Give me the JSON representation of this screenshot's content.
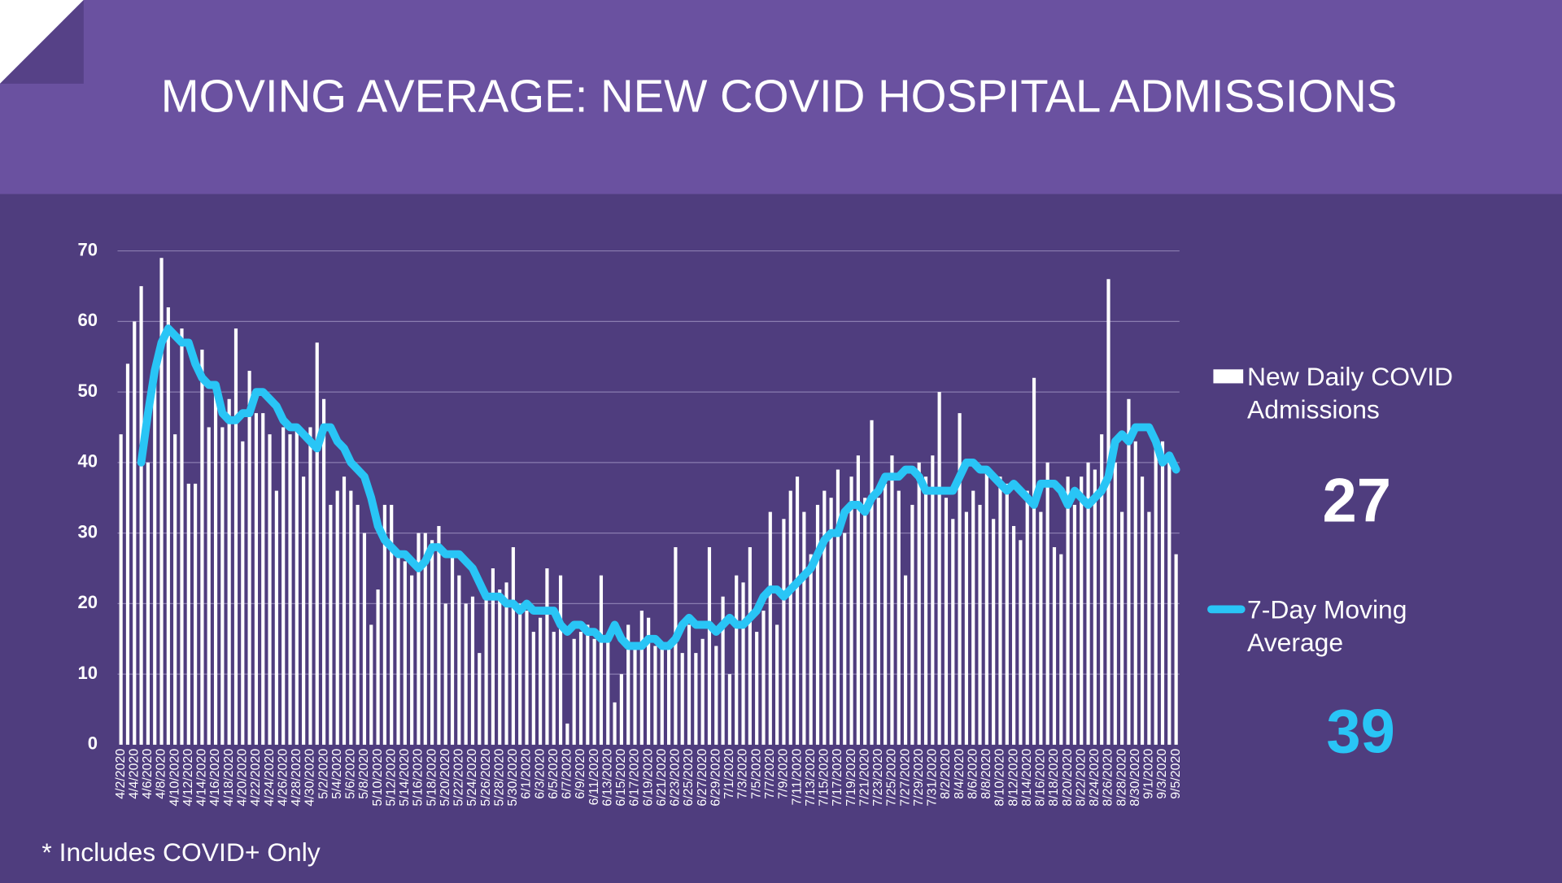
{
  "chart_data": {
    "type": "bar-line",
    "title": "MOVING AVERAGE: NEW COVID HOSPITAL ADMISSIONS",
    "note": "* Includes COVID+ Only",
    "categories": [
      "4/2/2020",
      null,
      "4/4/2020",
      null,
      "4/6/2020",
      null,
      "4/8/2020",
      null,
      "4/10/2020",
      null,
      "4/12/2020",
      null,
      "4/14/2020",
      null,
      "4/16/2020",
      null,
      "4/18/2020",
      null,
      "4/20/2020",
      null,
      "4/22/2020",
      null,
      "4/24/2020",
      null,
      "4/26/2020",
      null,
      "4/28/2020",
      null,
      "4/30/2020",
      null,
      "5/2/2020",
      null,
      "5/4/2020",
      null,
      "5/6/2020",
      null,
      "5/8/2020",
      null,
      "5/10/2020",
      null,
      "5/12/2020",
      null,
      "5/14/2020",
      null,
      "5/16/2020",
      null,
      "5/18/2020",
      null,
      "5/20/2020",
      null,
      "5/22/2020",
      null,
      "5/24/2020",
      null,
      "5/26/2020",
      null,
      "5/28/2020",
      null,
      "5/30/2020",
      null,
      "6/1/2020",
      null,
      "6/3/2020",
      null,
      "6/5/2020",
      null,
      "6/7/2020",
      null,
      "6/9/2020",
      null,
      "6/11/2020",
      null,
      "6/13/2020",
      null,
      "6/15/2020",
      null,
      "6/17/2020",
      null,
      "6/19/2020",
      null,
      "6/21/2020",
      null,
      "6/23/2020",
      null,
      "6/25/2020",
      null,
      "6/27/2020",
      null,
      "6/29/2020",
      null,
      "7/1/2020",
      null,
      "7/3/2020",
      null,
      "7/5/2020",
      null,
      "7/7/2020",
      null,
      "7/9/2020",
      null,
      "7/11/2020",
      null,
      "7/13/2020",
      null,
      "7/15/2020",
      null,
      "7/17/2020",
      null,
      "7/19/2020",
      null,
      "7/21/2020",
      null,
      "7/23/2020",
      null,
      "7/25/2020",
      null,
      "7/27/2020",
      null,
      "7/29/2020",
      null,
      "7/31/2020",
      null,
      "8/2/2020",
      null,
      "8/4/2020",
      null,
      "8/6/2020",
      null,
      "8/8/2020",
      null,
      "8/10/2020",
      null,
      "8/12/2020",
      null,
      "8/14/2020",
      null,
      "8/16/2020",
      null,
      "8/18/2020",
      null,
      "8/20/2020",
      null,
      "8/22/2020",
      null,
      "8/24/2020",
      null,
      "8/26/2020",
      null,
      "8/28/2020",
      null,
      "8/30/2020",
      null,
      "9/1/2020",
      null,
      "9/3/2020",
      null,
      "9/5/2020"
    ],
    "series": [
      {
        "name": "New Daily COVID Admissions",
        "color": "#ffffff",
        "values": [
          44,
          54,
          60,
          65,
          40,
          52,
          69,
          62,
          44,
          59,
          37,
          37,
          56,
          45,
          50,
          45,
          49,
          59,
          43,
          53,
          47,
          47,
          44,
          36,
          45,
          44,
          45,
          38,
          45,
          57,
          49,
          34,
          36,
          38,
          36,
          34,
          30,
          17,
          22,
          34,
          34,
          27,
          26,
          24,
          30,
          30,
          29,
          31,
          20,
          27,
          24,
          20,
          21,
          13,
          21,
          25,
          22,
          23,
          28,
          20,
          19,
          16,
          18,
          25,
          16,
          24,
          3,
          15,
          16,
          17,
          15,
          24,
          15,
          6,
          10,
          17,
          14,
          19,
          18,
          14,
          14,
          14,
          28,
          13,
          17,
          13,
          15,
          28,
          14,
          21,
          10,
          24,
          23,
          28,
          16,
          19,
          33,
          17,
          32,
          36,
          38,
          33,
          27,
          34,
          36,
          35,
          39,
          30,
          38,
          41,
          35,
          46,
          35,
          37,
          41,
          36,
          24,
          34,
          40,
          38,
          41,
          50,
          35,
          32,
          47,
          33,
          36,
          34,
          39,
          32,
          38,
          37,
          31,
          29,
          36,
          52,
          33,
          40,
          28,
          27,
          38,
          34,
          38,
          40,
          39,
          44,
          66,
          40,
          33,
          49,
          43,
          38,
          33,
          43,
          43,
          41,
          27
        ]
      },
      {
        "name": "7-Day Moving Average",
        "color": "#29c5f6",
        "values": [
          null,
          null,
          null,
          40,
          47,
          53,
          57,
          59,
          58,
          57,
          57,
          54,
          52,
          51,
          51,
          47,
          46,
          46,
          47,
          47,
          50,
          50,
          49,
          48,
          46,
          45,
          45,
          44,
          43,
          42,
          45,
          45,
          43,
          42,
          40,
          39,
          38,
          35,
          31,
          29,
          28,
          27,
          27,
          26,
          25,
          26,
          28,
          28,
          27,
          27,
          27,
          26,
          25,
          23,
          21,
          21,
          21,
          20,
          20,
          19,
          20,
          19,
          19,
          19,
          19,
          17,
          16,
          17,
          17,
          16,
          16,
          15,
          15,
          17,
          15,
          14,
          14,
          14,
          15,
          15,
          14,
          14,
          15,
          17,
          18,
          17,
          17,
          17,
          16,
          17,
          18,
          17,
          17,
          18,
          19,
          21,
          22,
          22,
          21,
          22,
          23,
          24,
          25,
          27,
          29,
          30,
          30,
          33,
          34,
          34,
          33,
          35,
          36,
          38,
          38,
          38,
          39,
          39,
          38,
          36,
          36,
          36,
          36,
          36,
          38,
          40,
          40,
          39,
          39,
          38,
          37,
          36,
          37,
          36,
          35,
          34,
          37,
          37,
          37,
          36,
          34,
          36,
          35,
          34,
          35,
          36,
          38,
          43,
          44,
          43,
          45,
          45,
          45,
          43,
          40,
          41,
          39
        ]
      }
    ],
    "ylim": [
      0,
      70
    ],
    "yticks": [
      0,
      10,
      20,
      30,
      40,
      50,
      60,
      70
    ],
    "grid": true
  }
}
